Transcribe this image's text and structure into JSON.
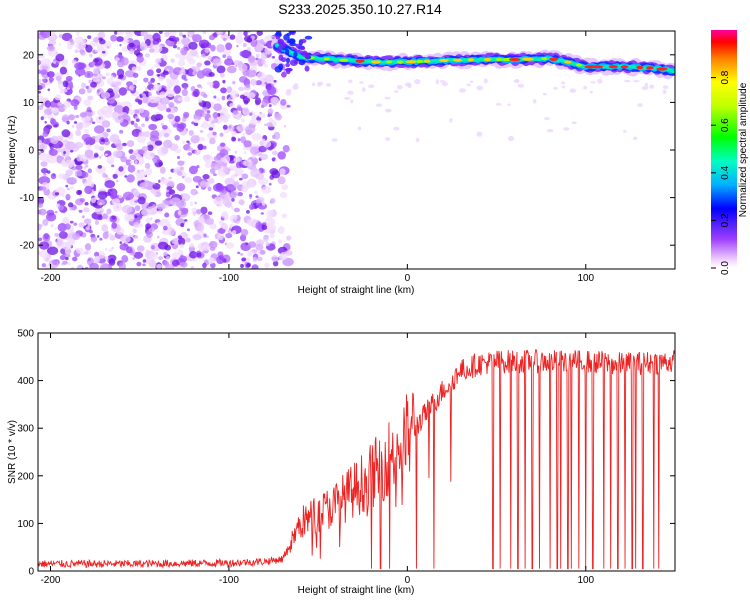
{
  "title": "S233.2025.350.10.27.R14",
  "chart_data": [
    {
      "type": "heatmap",
      "title": "S233.2025.350.10.27.R14",
      "xlabel": "Height of straight line (km)",
      "ylabel": "Frequency (Hz)",
      "xlim": [
        -207,
        150
      ],
      "ylim": [
        -25,
        25
      ],
      "xticks": [
        -200,
        -100,
        0,
        100
      ],
      "yticks": [
        -20,
        -10,
        0,
        10,
        20
      ],
      "noise_region_x": [
        -207,
        -73
      ],
      "tone": {
        "x": [
          -73,
          -60,
          -40,
          -20,
          0,
          20,
          40,
          60,
          80,
          90,
          100,
          120,
          140,
          150
        ],
        "freq_hz": [
          22,
          19.5,
          19,
          18.5,
          18.5,
          18.8,
          19,
          19,
          19.2,
          18.5,
          17.5,
          17.5,
          17.2,
          16.5
        ]
      },
      "colorbar": {
        "label": "Normalized spectral amplitude",
        "range": [
          0,
          1
        ],
        "ticks": [
          "0.0",
          "0.2",
          "0.4",
          "0.6",
          "0.8"
        ]
      }
    },
    {
      "type": "line",
      "xlabel": "Height of straight line (km)",
      "ylabel": "SNR (10 * v/v)",
      "xlim": [
        -207,
        150
      ],
      "ylim": [
        0,
        500
      ],
      "xticks": [
        -200,
        -100,
        0,
        100
      ],
      "yticks": [
        0,
        100,
        200,
        300,
        400,
        500
      ],
      "color": "#ee2222",
      "series": [
        {
          "name": "SNR",
          "x": [
            -207,
            -150,
            -100,
            -80,
            -70,
            -65,
            -60,
            -50,
            -40,
            -30,
            -20,
            -10,
            0,
            10,
            20,
            30,
            40,
            50,
            70,
            100,
            120,
            150
          ],
          "values": [
            15,
            15,
            17,
            20,
            25,
            60,
            100,
            120,
            140,
            170,
            200,
            240,
            280,
            330,
            380,
            420,
            435,
            440,
            440,
            440,
            435,
            440
          ]
        }
      ],
      "dropouts_x": [
        -20,
        -15,
        -10,
        5,
        15,
        48,
        52,
        58,
        62,
        66,
        70,
        74,
        80,
        84,
        86,
        90,
        92,
        96,
        100,
        104,
        110,
        114,
        118,
        122,
        126,
        128,
        132,
        138,
        141
      ]
    }
  ]
}
